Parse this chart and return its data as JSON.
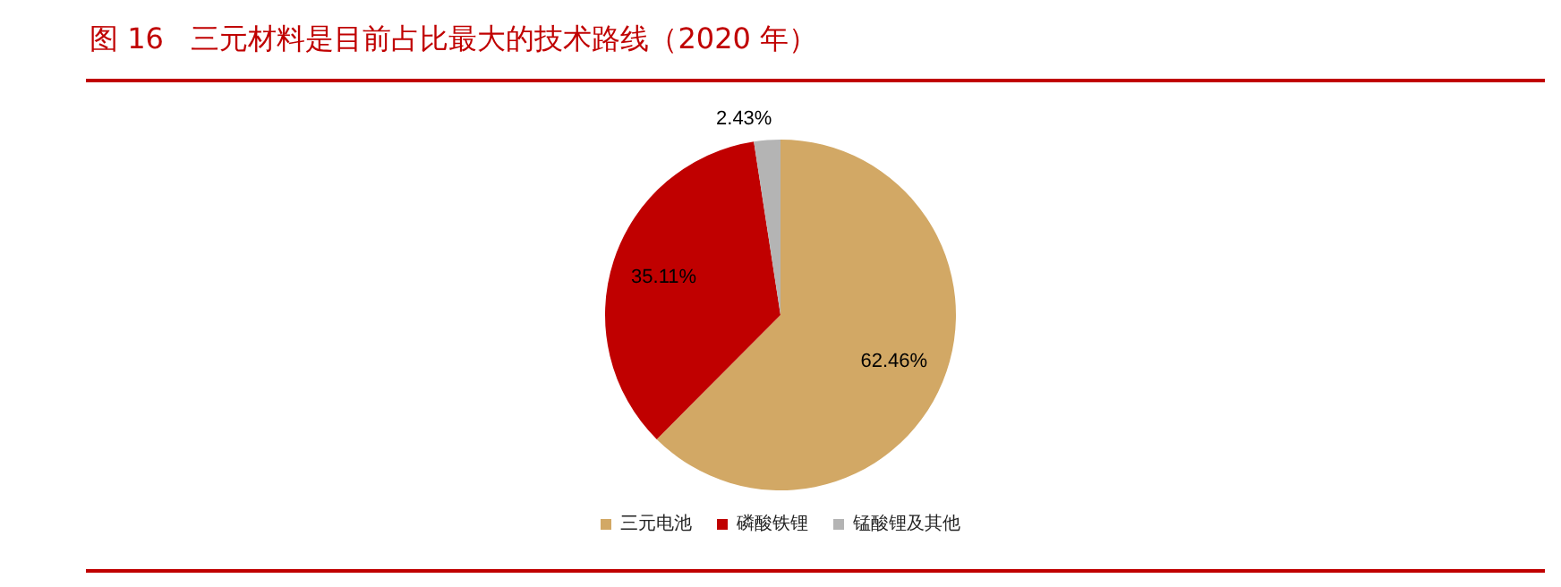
{
  "chart_data": {
    "type": "pie",
    "title": "图 16   三元材料是目前占比最大的技术路线（2020 年）",
    "categories": [
      "三元电池",
      "磷酸铁锂",
      "锰酸锂及其他"
    ],
    "values": [
      62.46,
      35.11,
      2.43
    ],
    "colors": [
      "#d2a865",
      "#c00000",
      "#b4b4b4"
    ],
    "value_labels": [
      "62.46%",
      "35.11%",
      "2.43%"
    ],
    "legend": "bottom"
  }
}
